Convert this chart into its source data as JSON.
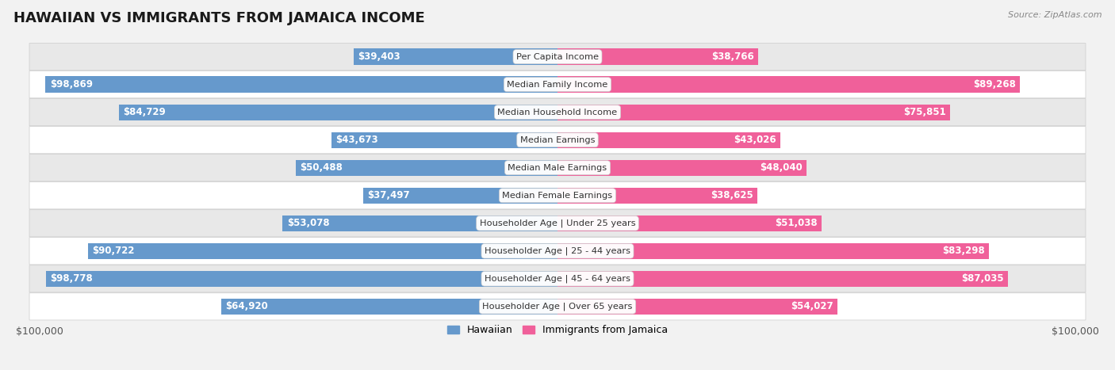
{
  "title": "HAWAIIAN VS IMMIGRANTS FROM JAMAICA INCOME",
  "source": "Source: ZipAtlas.com",
  "categories": [
    "Per Capita Income",
    "Median Family Income",
    "Median Household Income",
    "Median Earnings",
    "Median Male Earnings",
    "Median Female Earnings",
    "Householder Age | Under 25 years",
    "Householder Age | 25 - 44 years",
    "Householder Age | 45 - 64 years",
    "Householder Age | Over 65 years"
  ],
  "hawaiian": [
    39403,
    98869,
    84729,
    43673,
    50488,
    37497,
    53078,
    90722,
    98778,
    64920
  ],
  "jamaica": [
    38766,
    89268,
    75851,
    43026,
    48040,
    38625,
    51038,
    83298,
    87035,
    54027
  ],
  "hawaiian_labels": [
    "$39,403",
    "$98,869",
    "$84,729",
    "$43,673",
    "$50,488",
    "$37,497",
    "$53,078",
    "$90,722",
    "$98,778",
    "$64,920"
  ],
  "jamaica_labels": [
    "$38,766",
    "$89,268",
    "$75,851",
    "$43,026",
    "$48,040",
    "$38,625",
    "$51,038",
    "$83,298",
    "$87,035",
    "$54,027"
  ],
  "max_value": 100000,
  "hawaiian_light_color": "#aec9e8",
  "hawaiian_dark_color": "#6699cc",
  "jamaica_light_color": "#f9b8cc",
  "jamaica_dark_color": "#f0609a",
  "bg_color": "#f2f2f2",
  "row_bg_odd": "#ffffff",
  "row_bg_even": "#e8e8e8",
  "title_fontsize": 13,
  "label_fontsize": 8.5,
  "axis_label_fontsize": 9,
  "legend_fontsize": 9,
  "inside_threshold": 35000
}
